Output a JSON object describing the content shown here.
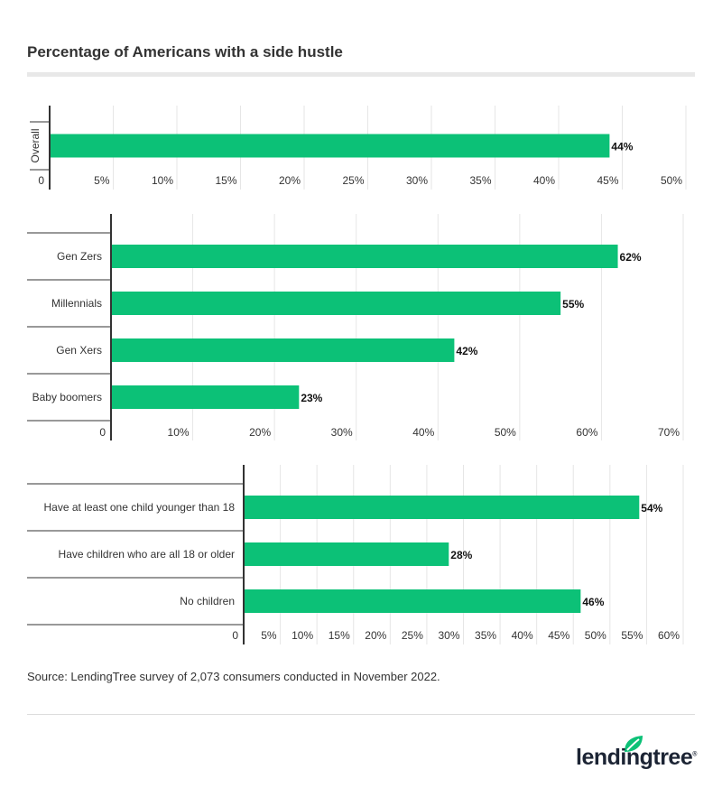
{
  "title": "Percentage of Americans with a side hustle",
  "source": "Source: LendingTree survey of 2,073 consumers conducted in November 2022.",
  "logo": "lendingtree",
  "colors": {
    "bar": "#0cc177",
    "axis": "#333333",
    "grid": "#e6e6e6",
    "logo_leaf": "#0cc177"
  },
  "chart_data": [
    {
      "type": "bar",
      "orientation": "horizontal",
      "categories": [
        "Overall"
      ],
      "values": [
        44
      ],
      "xlim": [
        0,
        50
      ],
      "ticks": [
        "0",
        "5%",
        "10%",
        "15%",
        "20%",
        "25%",
        "30%",
        "35%",
        "40%",
        "45%",
        "50%"
      ],
      "tick_values": [
        0,
        5,
        10,
        15,
        20,
        25,
        30,
        35,
        40,
        45,
        50
      ],
      "data_labels": [
        "44%"
      ],
      "grid": true,
      "category_label_rotated": true
    },
    {
      "type": "bar",
      "orientation": "horizontal",
      "categories": [
        "Gen Zers",
        "Millennials",
        "Gen Xers",
        "Baby boomers"
      ],
      "values": [
        62,
        55,
        42,
        23
      ],
      "xlim": [
        0,
        70
      ],
      "ticks": [
        "0",
        "10%",
        "20%",
        "30%",
        "40%",
        "50%",
        "60%",
        "70%"
      ],
      "tick_values": [
        0,
        10,
        20,
        30,
        40,
        50,
        60,
        70
      ],
      "data_labels": [
        "62%",
        "55%",
        "42%",
        "23%"
      ],
      "grid": true
    },
    {
      "type": "bar",
      "orientation": "horizontal",
      "categories": [
        "Have at least one child younger than 18",
        "Have children who are all 18 or older",
        "No children"
      ],
      "values": [
        54,
        28,
        46
      ],
      "xlim": [
        0,
        60
      ],
      "ticks": [
        "0",
        "5%",
        "10%",
        "15%",
        "20%",
        "25%",
        "30%",
        "35%",
        "40%",
        "45%",
        "50%",
        "55%",
        "60%"
      ],
      "tick_values": [
        0,
        5,
        10,
        15,
        20,
        25,
        30,
        35,
        40,
        45,
        50,
        55,
        60
      ],
      "data_labels": [
        "54%",
        "28%",
        "46%"
      ],
      "grid": true
    }
  ]
}
